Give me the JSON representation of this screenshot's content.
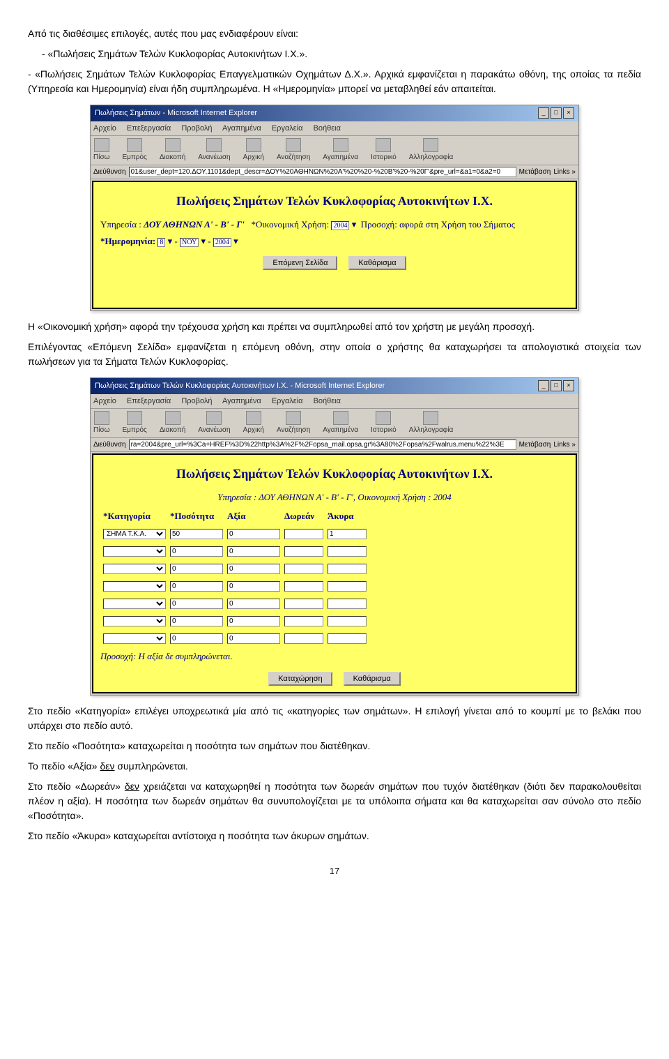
{
  "intro": "Από τις διαθέσιμες επιλογές, αυτές που μας ενδιαφέρουν είναι:",
  "bullet1": "- «Πωλήσεις Σημάτων Τελών Κυκλοφορίας Αυτοκινήτων Ι.Χ.».",
  "bullet2": "- «Πωλήσεις Σημάτων Τελών Κυκλοφορίας Επαγγελματικών Οχημάτων Δ.Χ.». Αρχικά εμφανίζεται η παρακάτω οθόνη, της οποίας τα πεδία (Υπηρεσία και Ημερομηνία) είναι ήδη συμπληρωμένα. Η «Ημερομηνία» μπορεί να μεταβληθεί εάν απαιτείται.",
  "para_econ": "Η «Οικονομική χρήση» αφορά την τρέχουσα χρήση και πρέπει να συμπληρωθεί από τον χρήστη με μεγάλη προσοχή.",
  "para_next": "Επιλέγοντας «Επόμενη Σελίδα» εμφανίζεται η επόμενη οθόνη, στην οποία ο χρήστης θα καταχωρήσει τα απολογιστικά στοιχεία των πωλήσεων για τα Σήματα Τελών Κυκλοφορίας.",
  "para_cat": "Στο πεδίο «Κατηγορία» επιλέγει υποχρεωτικά μία από τις «κατηγορίες των σημάτων». Η επιλογή γίνεται από το κουμπί με το βελάκι που υπάρχει στο πεδίο αυτό.",
  "para_qty": "Στο πεδίο «Ποσότητα» καταχωρείται η ποσότητα των σημάτων που διατέθηκαν.",
  "para_val_pre": "Το πεδίο «Αξία» ",
  "para_val_u": "δεν",
  "para_val_post": " συμπληρώνεται.",
  "para_free_pre": "Στο πεδίο «Δωρεάν» ",
  "para_free_u": "δεν",
  "para_free_post": " χρειάζεται να καταχωρηθεί η ποσότητα των δωρεάν σημάτων που τυχόν διατέθηκαν (διότι δεν παρακολουθείται πλέον η αξία). Η ποσότητα των δωρεάν σημάτων θα συνυπολογίζεται με τα υπόλοιπα σήματα και θα καταχωρείται σαν σύνολο στο πεδίο «Ποσότητα».",
  "para_invalid": "Στο πεδίο «Άκυρα» καταχωρείται αντίστοιχα η ποσότητα των άκυρων σημάτων.",
  "pagenum": "17",
  "win1": {
    "title": "Πωλήσεις Σημάτων - Microsoft Internet Explorer",
    "menus": [
      "Αρχείο",
      "Επεξεργασία",
      "Προβολή",
      "Αγαπημένα",
      "Εργαλεία",
      "Βοήθεια"
    ],
    "tb": [
      "Πίσω",
      "Εμπρός",
      "Διακοπή",
      "Ανανέωση",
      "Αρχική",
      "Αναζήτηση",
      "Αγαπημένα",
      "Ιστορικό",
      "Αλληλογραφία"
    ],
    "addrlabel": "Διεύθυνση",
    "addr": "01&user_dept=120.ΔΟΥ.1101&dept_descr=ΔΟΥ%20ΑΘΗΝΩΝ%20Α'%20%20-%20Β'%20-%20Γ'&pre_url=&a1=0&a2=0",
    "gobtn": "Μετάβαση",
    "links": "Links »",
    "apptitle": "Πωλήσεις Σημάτων Τελών Κυκλοφορίας Αυτοκινήτων Ι.Χ.",
    "svc_label": "Υπηρεσία :",
    "svc_val": "ΔΟΥ ΑΘΗΝΩΝ Α' - Β' - Γ'",
    "econ_label": "*Οικονομική Χρήση:",
    "econ_val": "2004",
    "econ_note": "Προσοχή: αφορά στη Χρήση του Σήματος",
    "date_label": "*Ημερομηνία:",
    "date_d": "8",
    "date_m": "ΝΟΥ",
    "date_y": "2004",
    "btn_next": "Επόμενη Σελίδα",
    "btn_clear": "Καθάρισμα"
  },
  "win2": {
    "title": "Πωλήσεις Σημάτων Τελών Κυκλοφορίας Αυτοκινήτων I.X. - Microsoft Internet Explorer",
    "menus": [
      "Αρχείο",
      "Επεξεργασία",
      "Προβολή",
      "Αγαπημένα",
      "Εργαλεία",
      "Βοήθεια"
    ],
    "tb": [
      "Πίσω",
      "Εμπρός",
      "Διακοπή",
      "Ανανέωση",
      "Αρχική",
      "Αναζήτηση",
      "Αγαπημένα",
      "Ιστορικό",
      "Αλληλογραφία"
    ],
    "addrlabel": "Διεύθυνση",
    "addr": "ra=2004&pre_url=%3Ca+HREF%3D%22http%3A%2F%2Fopsa_mail.opsa.gr%3A80%2Fopsa%2Fwalrus.menu%22%3E",
    "gobtn": "Μετάβαση",
    "links": "Links »",
    "apptitle": "Πωλήσεις Σημάτων Τελών Κυκλοφορίας Αυτοκινήτων Ι.Χ.",
    "svcline": "Υπηρεσία : ΔΟΥ ΑΘΗΝΩΝ Α' - Β' - Γ',   Οικονομική Χρήση : 2004",
    "col_cat": "*Κατηγορία",
    "col_qty": "*Ποσότητα",
    "col_val": "Αξία",
    "col_free": "Δωρεάν",
    "col_inv": "Άκυρα",
    "rows": [
      {
        "cat": "ΣΗΜΑ Τ.Κ.Α.",
        "qty": "50",
        "val": "0",
        "free": "",
        "inv": "1"
      },
      {
        "cat": "",
        "qty": "0",
        "val": "0",
        "free": "",
        "inv": ""
      },
      {
        "cat": "",
        "qty": "0",
        "val": "0",
        "free": "",
        "inv": ""
      },
      {
        "cat": "",
        "qty": "0",
        "val": "0",
        "free": "",
        "inv": ""
      },
      {
        "cat": "",
        "qty": "0",
        "val": "0",
        "free": "",
        "inv": ""
      },
      {
        "cat": "",
        "qty": "0",
        "val": "0",
        "free": "",
        "inv": ""
      },
      {
        "cat": "",
        "qty": "0",
        "val": "0",
        "free": "",
        "inv": ""
      }
    ],
    "note": "Προσοχή: Η αξία δε συμπληρώνεται.",
    "btn_save": "Καταχώρηση",
    "btn_clear": "Καθάρισμα"
  }
}
